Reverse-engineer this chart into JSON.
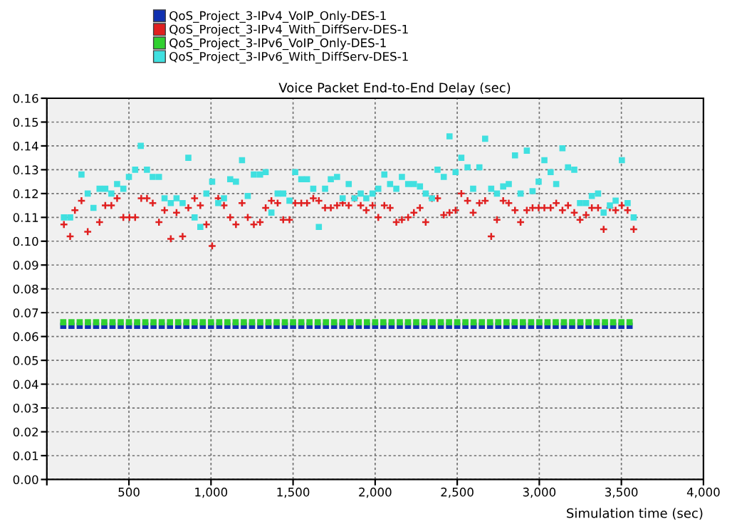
{
  "chart_data": {
    "type": "scatter",
    "title": "Voice Packet End-to-End Delay (sec)",
    "xlabel": "Simulation time (sec)",
    "xlim": [
      0,
      4000
    ],
    "ylim": [
      0,
      0.16
    ],
    "xticks": [
      {
        "value": 0,
        "label": null
      },
      500,
      {
        "value": 1000,
        "label": "1,000"
      },
      {
        "value": 1500,
        "label": "1,500"
      },
      {
        "value": 2000,
        "label": "2,000"
      },
      {
        "value": 2500,
        "label": "2,500"
      },
      {
        "value": 3000,
        "label": "3,000"
      },
      {
        "value": 3500,
        "label": "3,500"
      },
      {
        "value": 4000,
        "label": "4,000"
      }
    ],
    "yticks": [
      {
        "value": 0,
        "label": "0.00"
      },
      0.01,
      0.02,
      0.03,
      0.04,
      0.05,
      0.06,
      0.07,
      0.08,
      0.09,
      {
        "value": 0.1,
        "label": "0.10"
      },
      0.11,
      0.12,
      0.13,
      0.14,
      0.15,
      0.16
    ],
    "grid": true,
    "legend": "top left",
    "series": [
      {
        "name": "QoS_Project_3-IPv4_VoIP_Only-DES-1",
        "color": "#1030b0",
        "marker": "square",
        "x": [
          100,
          150,
          200,
          250,
          300,
          350,
          400,
          450,
          500,
          550,
          600,
          650,
          700,
          750,
          800,
          850,
          900,
          950,
          1000,
          1050,
          1100,
          1150,
          1200,
          1250,
          1300,
          1350,
          1400,
          1450,
          1500,
          1550,
          1600,
          1650,
          1700,
          1750,
          1800,
          1850,
          1900,
          1950,
          2000,
          2050,
          2100,
          2150,
          2200,
          2250,
          2300,
          2350,
          2400,
          2450,
          2500,
          2550,
          2600,
          2650,
          2700,
          2750,
          2800,
          2850,
          2900,
          2950,
          3000,
          3050,
          3100,
          3150,
          3200,
          3250,
          3300,
          3350,
          3400,
          3450,
          3500,
          3550
        ],
        "values": [
          0.0645,
          0.0645,
          0.0645,
          0.0645,
          0.0645,
          0.0645,
          0.0645,
          0.0645,
          0.0645,
          0.0645,
          0.0645,
          0.0645,
          0.0645,
          0.0645,
          0.0645,
          0.0645,
          0.0645,
          0.0645,
          0.0645,
          0.0645,
          0.0645,
          0.0645,
          0.0645,
          0.0645,
          0.0645,
          0.0645,
          0.0645,
          0.0645,
          0.0645,
          0.0645,
          0.0645,
          0.0645,
          0.0645,
          0.0645,
          0.0645,
          0.0645,
          0.0645,
          0.0645,
          0.0645,
          0.0645,
          0.0645,
          0.0645,
          0.0645,
          0.0645,
          0.0645,
          0.0645,
          0.0645,
          0.0645,
          0.0645,
          0.0645,
          0.0645,
          0.0645,
          0.0645,
          0.0645,
          0.0645,
          0.0645,
          0.0645,
          0.0645,
          0.0645,
          0.0645,
          0.0645,
          0.0645,
          0.0645,
          0.0645,
          0.0645,
          0.0645,
          0.0645,
          0.0645,
          0.0645,
          0.0645
        ]
      },
      {
        "name": "QoS_Project_3-IPv4_With_DiffServ-DES-1",
        "color": "#e02020",
        "marker": "cross",
        "x": [
          104,
          142,
          171,
          211,
          249,
          321,
          356,
          393,
          428,
          466,
          503,
          538,
          575,
          610,
          645,
          683,
          717,
          755,
          790,
          827,
          862,
          900,
          935,
          972,
          1007,
          1044,
          1079,
          1117,
          1152,
          1189,
          1224,
          1261,
          1299,
          1333,
          1368,
          1406,
          1440,
          1478,
          1513,
          1550,
          1585,
          1623,
          1657,
          1695,
          1730,
          1768,
          1802,
          1839,
          1874,
          1912,
          1946,
          1984,
          2019,
          2056,
          2091,
          2129,
          2163,
          2201,
          2236,
          2273,
          2308,
          2346,
          2380,
          2418,
          2453,
          2490,
          2525,
          2563,
          2597,
          2635,
          2670,
          2707,
          2742,
          2780,
          2814,
          2852,
          2886,
          2924,
          2959,
          2996,
          3031,
          3069,
          3103,
          3141,
          3175,
          3213,
          3248,
          3285,
          3320,
          3358,
          3392,
          3430,
          3465,
          3503,
          3538,
          3575
        ],
        "values": [
          0.107,
          0.102,
          0.113,
          0.117,
          0.104,
          0.108,
          0.115,
          0.115,
          0.118,
          0.11,
          0.11,
          0.11,
          0.118,
          0.118,
          0.116,
          0.108,
          0.113,
          0.101,
          0.112,
          0.102,
          0.114,
          0.118,
          0.115,
          0.107,
          0.098,
          0.118,
          0.115,
          0.11,
          0.107,
          0.116,
          0.11,
          0.107,
          0.108,
          0.114,
          0.117,
          0.116,
          0.109,
          0.109,
          0.116,
          0.116,
          0.116,
          0.118,
          0.117,
          0.114,
          0.114,
          0.115,
          0.116,
          0.115,
          0.118,
          0.115,
          0.113,
          0.115,
          0.11,
          0.115,
          0.114,
          0.108,
          0.109,
          0.11,
          0.112,
          0.114,
          0.108,
          0.118,
          0.118,
          0.111,
          0.112,
          0.113,
          0.12,
          0.117,
          0.112,
          0.116,
          0.117,
          0.102,
          0.109,
          0.117,
          0.116,
          0.113,
          0.108,
          0.113,
          0.114,
          0.114,
          0.114,
          0.114,
          0.116,
          0.113,
          0.115,
          0.112,
          0.109,
          0.111,
          0.114,
          0.114,
          0.105,
          0.114,
          0.113,
          0.115,
          0.113,
          0.105
        ]
      },
      {
        "name": "QoS_Project_3-IPv6_VoIP_Only-DES-1",
        "color": "#30d030",
        "marker": "square",
        "x": [
          100,
          150,
          200,
          250,
          300,
          350,
          400,
          450,
          500,
          550,
          600,
          650,
          700,
          750,
          800,
          850,
          900,
          950,
          1000,
          1050,
          1100,
          1150,
          1200,
          1250,
          1300,
          1350,
          1400,
          1450,
          1500,
          1550,
          1600,
          1650,
          1700,
          1750,
          1800,
          1850,
          1900,
          1950,
          2000,
          2050,
          2100,
          2150,
          2200,
          2250,
          2300,
          2350,
          2400,
          2450,
          2500,
          2550,
          2600,
          2650,
          2700,
          2750,
          2800,
          2850,
          2900,
          2950,
          3000,
          3050,
          3100,
          3150,
          3200,
          3250,
          3300,
          3350,
          3400,
          3450,
          3500,
          3550
        ],
        "values": [
          0.066,
          0.066,
          0.066,
          0.066,
          0.066,
          0.066,
          0.066,
          0.066,
          0.066,
          0.066,
          0.066,
          0.066,
          0.066,
          0.066,
          0.066,
          0.066,
          0.066,
          0.066,
          0.066,
          0.066,
          0.066,
          0.066,
          0.066,
          0.066,
          0.066,
          0.066,
          0.066,
          0.066,
          0.066,
          0.066,
          0.066,
          0.066,
          0.066,
          0.066,
          0.066,
          0.066,
          0.066,
          0.066,
          0.066,
          0.066,
          0.066,
          0.066,
          0.066,
          0.066,
          0.066,
          0.066,
          0.066,
          0.066,
          0.066,
          0.066,
          0.066,
          0.066,
          0.066,
          0.066,
          0.066,
          0.066,
          0.066,
          0.066,
          0.066,
          0.066,
          0.066,
          0.066,
          0.066,
          0.066,
          0.066,
          0.066,
          0.066,
          0.066,
          0.066,
          0.066
        ]
      },
      {
        "name": "QoS_Project_3-IPv6_With_DiffServ-DES-1",
        "color": "#40e0e0",
        "marker": "square",
        "x": [
          104,
          142,
          211,
          249,
          284,
          321,
          356,
          393,
          428,
          466,
          500,
          538,
          572,
          610,
          645,
          683,
          717,
          755,
          790,
          827,
          862,
          900,
          935,
          972,
          1007,
          1044,
          1079,
          1117,
          1152,
          1189,
          1224,
          1261,
          1299,
          1333,
          1368,
          1406,
          1440,
          1478,
          1513,
          1550,
          1585,
          1623,
          1657,
          1695,
          1730,
          1768,
          1802,
          1839,
          1874,
          1912,
          1946,
          1984,
          2019,
          2056,
          2091,
          2129,
          2163,
          2201,
          2236,
          2273,
          2308,
          2346,
          2380,
          2418,
          2453,
          2490,
          2525,
          2563,
          2597,
          2635,
          2670,
          2707,
          2742,
          2780,
          2814,
          2852,
          2886,
          2924,
          2959,
          2996,
          3031,
          3069,
          3103,
          3141,
          3175,
          3213,
          3248,
          3285,
          3320,
          3358,
          3392,
          3430,
          3465,
          3503,
          3538,
          3575
        ],
        "values": [
          0.11,
          0.11,
          0.128,
          0.12,
          0.114,
          0.122,
          0.122,
          0.12,
          0.124,
          0.122,
          0.127,
          0.13,
          0.14,
          0.13,
          0.127,
          0.127,
          0.118,
          0.116,
          0.118,
          0.116,
          0.135,
          0.11,
          0.106,
          0.12,
          0.125,
          0.116,
          0.118,
          0.126,
          0.125,
          0.134,
          0.119,
          0.128,
          0.128,
          0.129,
          0.112,
          0.12,
          0.12,
          0.117,
          0.129,
          0.126,
          0.126,
          0.122,
          0.106,
          0.122,
          0.126,
          0.127,
          0.118,
          0.124,
          0.118,
          0.12,
          0.118,
          0.12,
          0.122,
          0.128,
          0.124,
          0.122,
          0.127,
          0.124,
          0.124,
          0.123,
          0.12,
          0.118,
          0.13,
          0.127,
          0.144,
          0.129,
          0.135,
          0.131,
          0.122,
          0.131,
          0.143,
          0.122,
          0.12,
          0.123,
          0.124,
          0.136,
          0.12,
          0.138,
          0.121,
          0.125,
          0.134,
          0.129,
          0.124,
          0.139,
          0.131,
          0.13,
          0.116,
          0.116,
          0.119,
          0.12,
          0.112,
          0.115,
          0.117,
          0.134,
          0.116,
          0.11
        ]
      }
    ]
  }
}
